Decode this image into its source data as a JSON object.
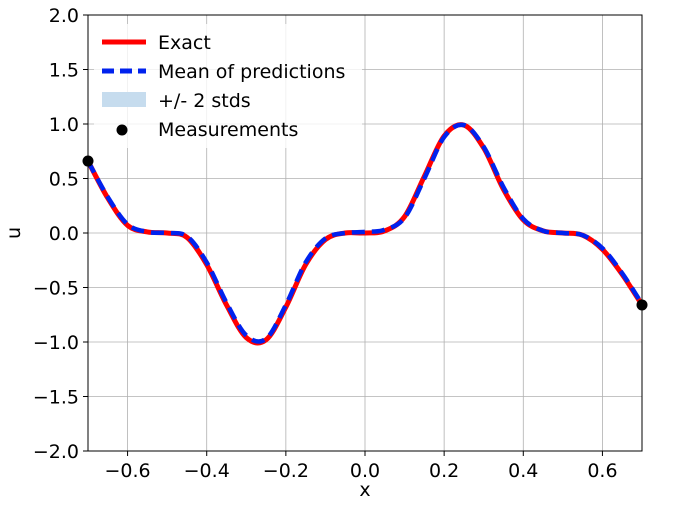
{
  "chart_data": {
    "type": "line",
    "title": "",
    "xlabel": "x",
    "ylabel": "u",
    "xlim": [
      -0.7,
      0.7
    ],
    "ylim": [
      -2.0,
      2.0
    ],
    "grid": true,
    "legend_position": "top-left",
    "xticks": [
      "−0.6",
      "−0.4",
      "−0.2",
      "0.0",
      "0.2",
      "0.4",
      "0.6"
    ],
    "xtick_values": [
      -0.6,
      -0.4,
      -0.2,
      0.0,
      0.2,
      0.4,
      0.6
    ],
    "yticks": [
      "−2.0",
      "−1.5",
      "−1.0",
      "−0.5",
      "0.0",
      "0.5",
      "1.0",
      "1.5",
      "2.0"
    ],
    "ytick_values": [
      -2.0,
      -1.5,
      -1.0,
      -0.5,
      0.0,
      0.5,
      1.0,
      1.5,
      2.0
    ],
    "series": [
      {
        "name": "Exact",
        "style": "solid",
        "color": "#ff0000",
        "x": [
          -0.7,
          -0.65,
          -0.6,
          -0.55,
          -0.5,
          -0.45,
          -0.4,
          -0.35,
          -0.3,
          -0.25,
          -0.2,
          -0.15,
          -0.1,
          -0.05,
          0.0,
          0.05,
          0.1,
          0.15,
          0.2,
          0.25,
          0.3,
          0.35,
          0.4,
          0.45,
          0.5,
          0.55,
          0.6,
          0.65,
          0.7
        ],
        "y": [
          0.66,
          0.32,
          0.07,
          0.01,
          0.0,
          -0.04,
          -0.29,
          -0.66,
          -0.96,
          -0.98,
          -0.68,
          -0.29,
          -0.06,
          0.0,
          0.0,
          0.02,
          0.15,
          0.52,
          0.89,
          0.99,
          0.78,
          0.4,
          0.12,
          0.02,
          0.0,
          -0.02,
          -0.15,
          -0.38,
          -0.66
        ]
      },
      {
        "name": "Mean of predictions",
        "style": "dashed",
        "color": "#0022ee",
        "x": [
          -0.7,
          -0.65,
          -0.6,
          -0.55,
          -0.5,
          -0.45,
          -0.4,
          -0.35,
          -0.3,
          -0.25,
          -0.2,
          -0.15,
          -0.1,
          -0.05,
          0.0,
          0.05,
          0.1,
          0.15,
          0.2,
          0.25,
          0.3,
          0.35,
          0.4,
          0.45,
          0.5,
          0.55,
          0.6,
          0.65,
          0.7
        ],
        "y": [
          0.66,
          0.33,
          0.08,
          0.01,
          0.0,
          -0.03,
          -0.27,
          -0.64,
          -0.94,
          -0.97,
          -0.66,
          -0.27,
          -0.05,
          0.0,
          0.01,
          0.03,
          0.14,
          0.5,
          0.88,
          0.99,
          0.79,
          0.42,
          0.13,
          0.02,
          0.0,
          -0.02,
          -0.14,
          -0.37,
          -0.65
        ]
      }
    ],
    "band": {
      "name": "+/- 2 stds",
      "color": "#c6dcee"
    },
    "measurements": {
      "name": "Measurements",
      "color": "#000000",
      "x": [
        -0.7,
        0.7
      ],
      "y": [
        0.66,
        -0.66
      ]
    },
    "legend": [
      "Exact",
      "Mean of predictions",
      "+/- 2 stds",
      "Measurements"
    ]
  }
}
